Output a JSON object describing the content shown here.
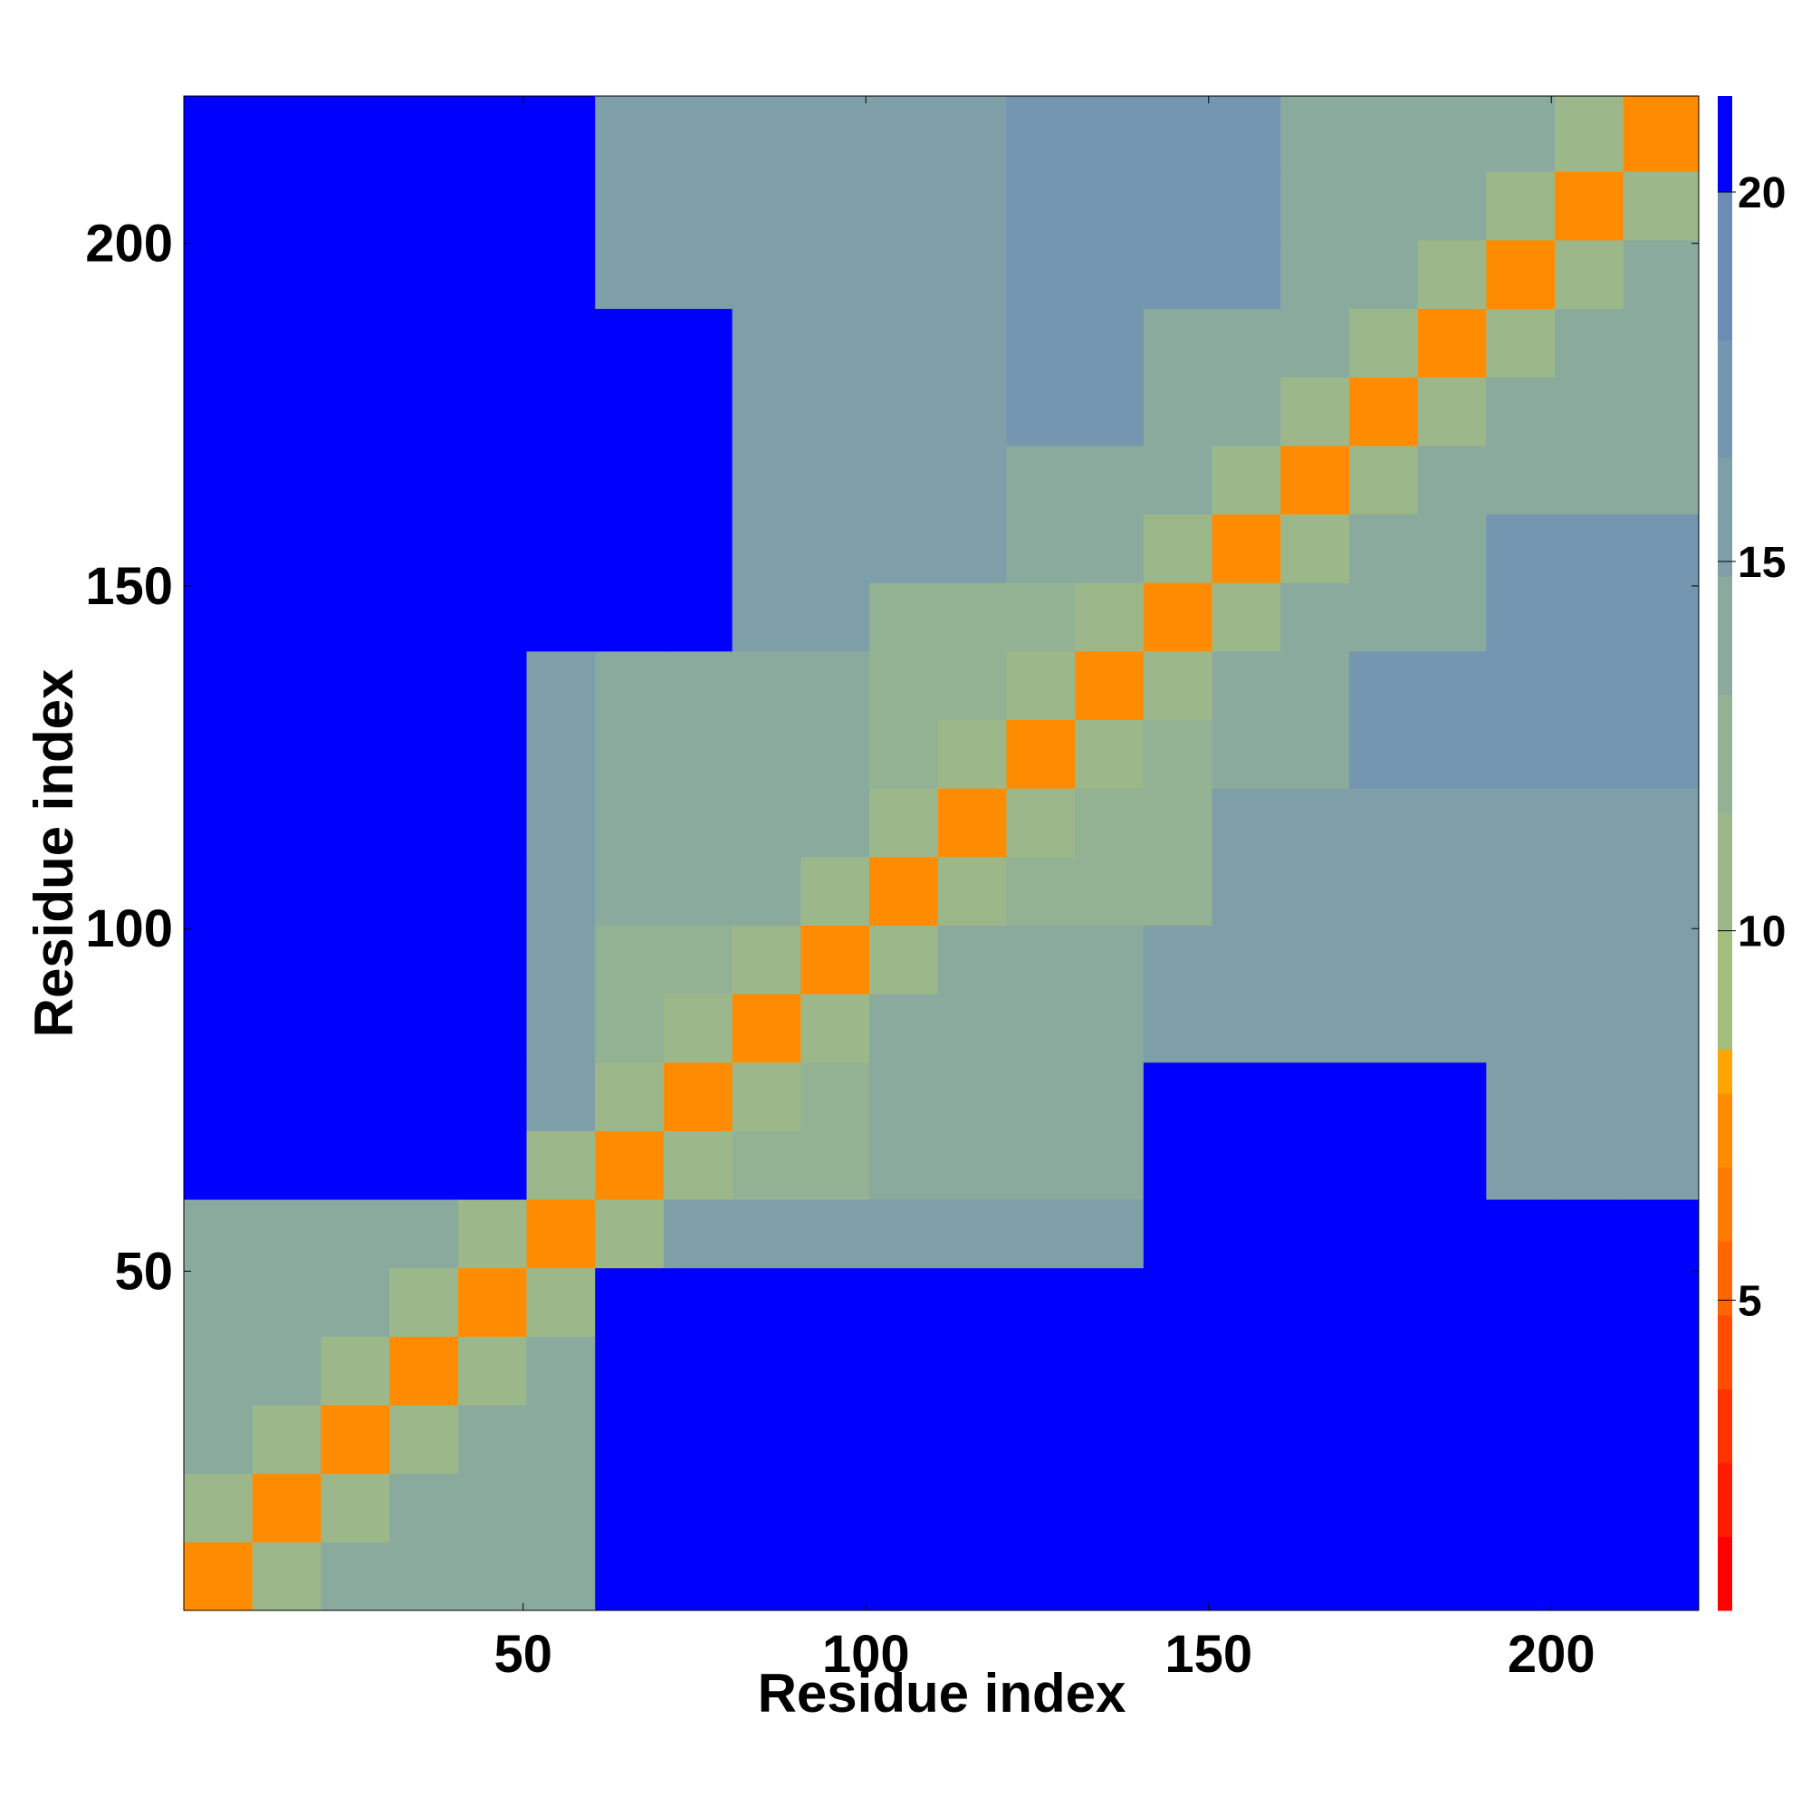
{
  "chart_data": {
    "type": "heatmap",
    "xlabel": "Residue index",
    "ylabel": "Residue index",
    "xlim": [
      0.5,
      221.5
    ],
    "ylim": [
      0.5,
      221.5
    ],
    "xticks": [
      50,
      100,
      150,
      200
    ],
    "yticks": [
      50,
      100,
      150,
      200
    ],
    "x_edges": [
      0.5,
      10.5,
      20.5,
      30.5,
      40.5,
      50.5,
      60.5,
      70.5,
      80.5,
      90.5,
      100.5,
      110.5,
      120.5,
      130.5,
      140.5,
      150.5,
      160.5,
      170.5,
      180.5,
      190.5,
      200.5,
      210.5,
      221.5
    ],
    "y_edges": [
      0.5,
      10.5,
      20.5,
      30.5,
      40.5,
      50.5,
      60.5,
      70.5,
      80.5,
      90.5,
      100.5,
      110.5,
      120.5,
      130.5,
      140.5,
      150.5,
      160.5,
      170.5,
      180.5,
      190.5,
      200.5,
      210.5,
      221.5
    ],
    "z": [
      [
        7,
        11,
        14,
        14,
        14,
        14,
        21,
        21,
        21,
        21,
        21,
        21,
        21,
        21,
        21,
        21,
        21,
        21,
        21,
        21,
        21,
        21
      ],
      [
        11,
        7,
        11,
        14,
        14,
        14,
        21,
        21,
        21,
        21,
        21,
        21,
        21,
        21,
        21,
        21,
        21,
        21,
        21,
        21,
        21,
        21
      ],
      [
        14,
        11,
        7,
        11,
        14,
        14,
        21,
        21,
        21,
        21,
        21,
        21,
        21,
        21,
        21,
        21,
        21,
        21,
        21,
        21,
        21,
        21
      ],
      [
        14,
        14,
        11,
        7,
        11,
        14,
        21,
        21,
        21,
        21,
        21,
        21,
        21,
        21,
        21,
        21,
        21,
        21,
        21,
        21,
        21,
        21
      ],
      [
        14,
        14,
        14,
        11,
        7,
        11,
        21,
        21,
        21,
        21,
        21,
        21,
        21,
        21,
        21,
        21,
        21,
        21,
        21,
        21,
        21,
        21
      ],
      [
        14,
        14,
        14,
        14,
        11,
        7,
        11,
        15,
        15,
        15,
        15,
        15,
        15,
        15,
        21,
        21,
        21,
        21,
        21,
        21,
        21,
        21
      ],
      [
        21,
        21,
        21,
        21,
        21,
        11,
        7,
        11,
        13,
        13,
        14,
        14,
        14,
        14,
        21,
        21,
        21,
        21,
        21,
        16,
        16,
        16
      ],
      [
        21,
        21,
        21,
        21,
        21,
        15,
        11,
        7,
        11,
        13,
        14,
        14,
        14,
        14,
        21,
        21,
        21,
        21,
        21,
        16,
        16,
        16
      ],
      [
        21,
        21,
        21,
        21,
        21,
        15,
        13,
        11,
        7,
        11,
        14,
        14,
        14,
        14,
        15,
        15,
        15,
        15,
        15,
        15,
        15,
        15
      ],
      [
        21,
        21,
        21,
        21,
        21,
        15,
        13,
        13,
        11,
        7,
        11,
        14,
        14,
        14,
        15,
        15,
        15,
        15,
        15,
        15,
        15,
        15
      ],
      [
        21,
        21,
        21,
        21,
        21,
        15,
        14,
        14,
        14,
        11,
        7,
        11,
        13,
        13,
        13,
        15,
        15,
        15,
        15,
        15,
        15,
        15
      ],
      [
        21,
        21,
        21,
        21,
        21,
        15,
        14,
        14,
        14,
        14,
        11,
        7,
        11,
        13,
        13,
        15,
        15,
        15,
        15,
        15,
        15,
        15
      ],
      [
        21,
        21,
        21,
        21,
        21,
        15,
        14,
        14,
        14,
        14,
        13,
        11,
        7,
        11,
        13,
        14,
        14,
        18,
        18,
        17,
        17,
        17
      ],
      [
        21,
        21,
        21,
        21,
        21,
        15,
        14,
        14,
        14,
        14,
        13,
        13,
        11,
        7,
        11,
        14,
        14,
        18,
        18,
        17,
        17,
        17
      ],
      [
        21,
        21,
        21,
        21,
        21,
        21,
        21,
        21,
        15,
        15,
        13,
        13,
        13,
        11,
        7,
        11,
        14,
        14,
        14,
        17,
        17,
        17
      ],
      [
        21,
        21,
        21,
        21,
        21,
        21,
        21,
        21,
        15,
        15,
        15,
        15,
        14,
        14,
        11,
        7,
        11,
        14,
        14,
        17,
        17,
        17
      ],
      [
        21,
        21,
        21,
        21,
        21,
        21,
        21,
        21,
        15,
        15,
        15,
        15,
        14,
        14,
        14,
        11,
        7,
        11,
        14,
        14,
        14,
        14
      ],
      [
        21,
        21,
        21,
        21,
        21,
        21,
        21,
        21,
        15,
        15,
        15,
        15,
        18,
        18,
        14,
        14,
        11,
        7,
        11,
        14,
        14,
        14
      ],
      [
        21,
        21,
        21,
        21,
        21,
        21,
        21,
        21,
        15,
        15,
        15,
        15,
        18,
        18,
        14,
        14,
        14,
        11,
        7,
        11,
        14,
        14
      ],
      [
        21,
        21,
        21,
        21,
        21,
        21,
        16,
        16,
        15,
        15,
        15,
        15,
        17,
        17,
        17,
        17,
        14,
        14,
        11,
        7,
        11,
        14
      ],
      [
        21,
        21,
        21,
        21,
        21,
        21,
        16,
        16,
        15,
        15,
        15,
        15,
        17,
        17,
        17,
        17,
        14,
        14,
        14,
        11,
        7,
        11
      ],
      [
        21,
        21,
        21,
        21,
        21,
        21,
        16,
        16,
        15,
        15,
        15,
        15,
        17,
        17,
        17,
        17,
        14,
        14,
        14,
        14,
        11,
        7
      ]
    ],
    "colorbar": {
      "lim": [
        0.8,
        21.3
      ],
      "ticks": [
        5,
        10,
        15,
        20
      ],
      "bounds": [
        0.8,
        1.8,
        2.8,
        3.8,
        4.8,
        5.8,
        6.8,
        7.8,
        8.4,
        10,
        11.6,
        13.2,
        14.8,
        16.4,
        18,
        20,
        21.3
      ],
      "colors": [
        "#ff0000",
        "#ff1a00",
        "#ff3300",
        "#ff4d00",
        "#ff6600",
        "#ff7a00",
        "#ff8c00",
        "#ffa500",
        "#a3bd7d",
        "#9cb88a",
        "#93b294",
        "#8aaa9e",
        "#7f9fa8",
        "#7496b0",
        "#6a8cb5",
        "#0000ff"
      ]
    }
  }
}
